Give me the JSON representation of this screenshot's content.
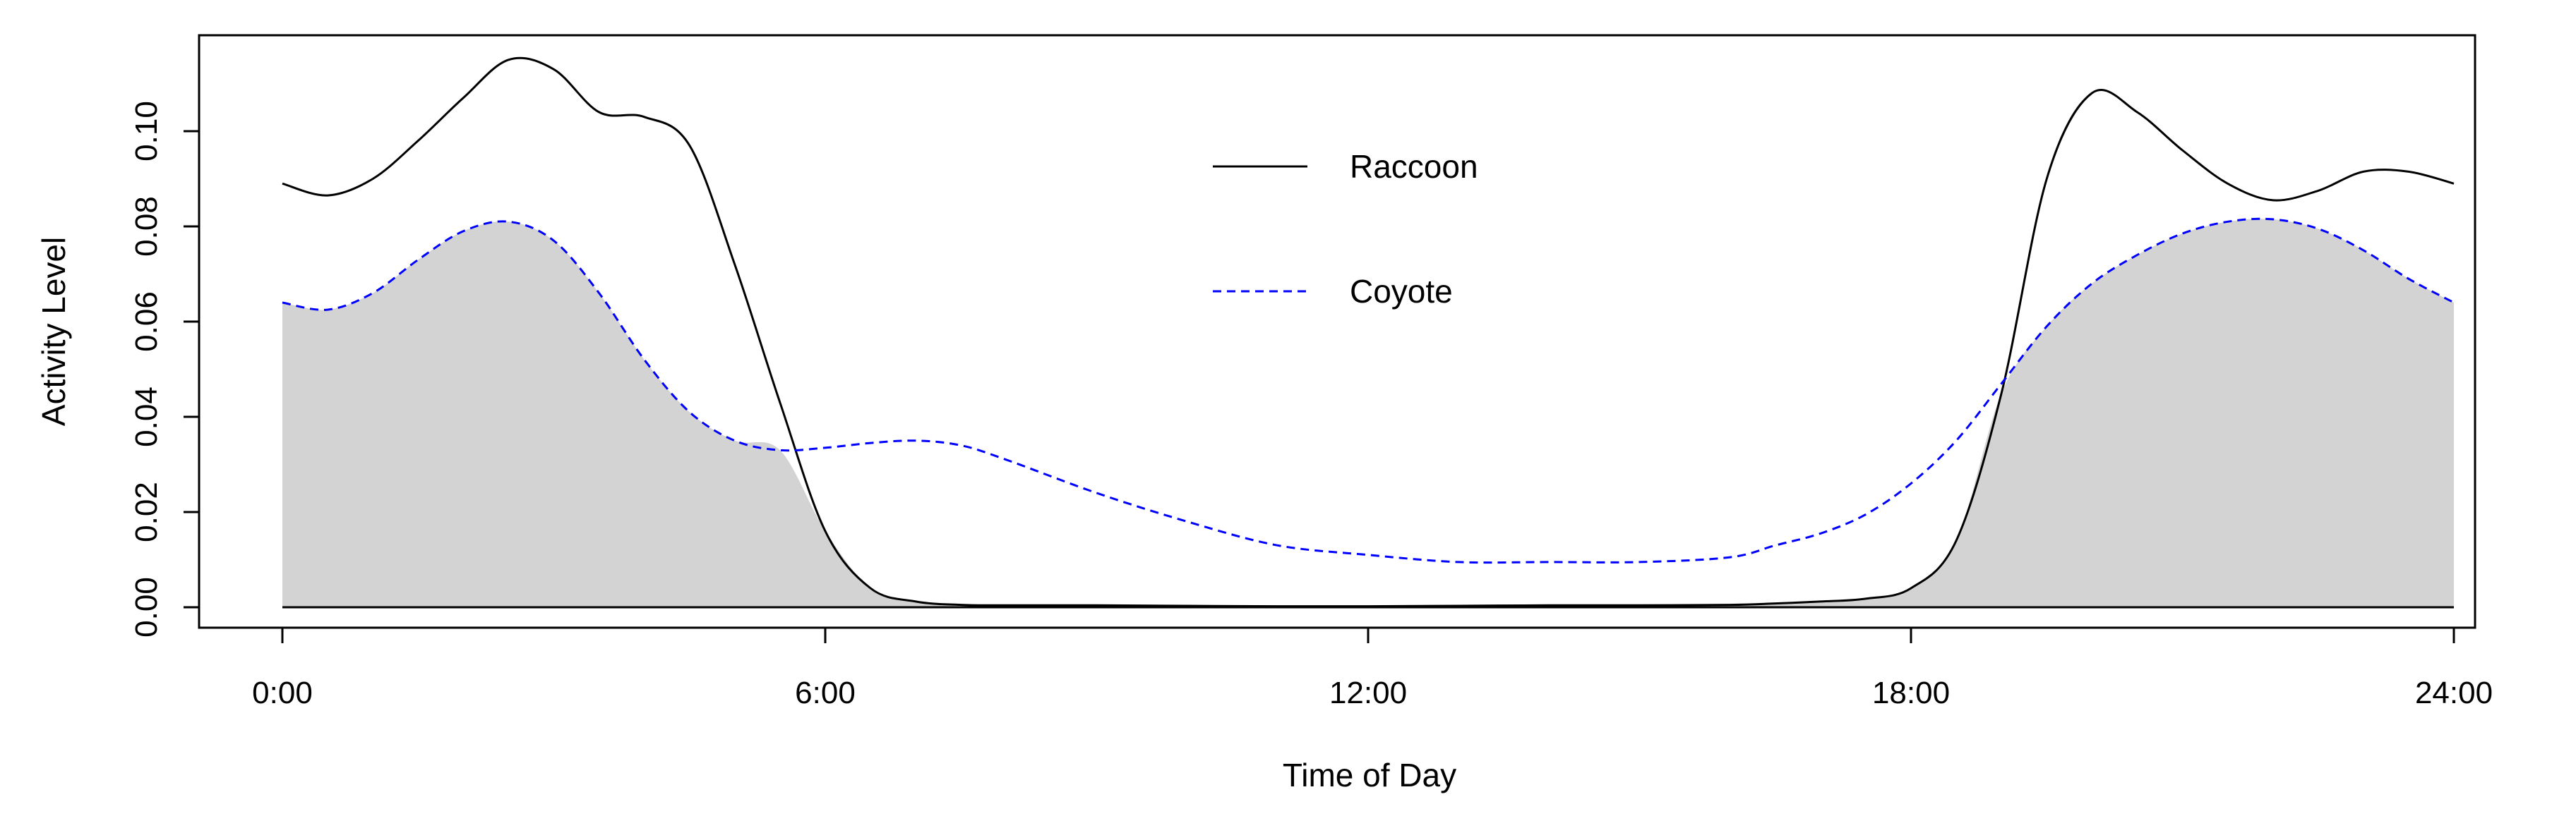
{
  "chart_data": {
    "type": "line",
    "xlabel": "Time of Day",
    "ylabel": "Activity Level",
    "xlim": [
      0,
      24
    ],
    "ylim": [
      0,
      0.1
    ],
    "y_range_padding_top": 0.118,
    "x_ticks": [
      {
        "value": 0,
        "label": "0:00"
      },
      {
        "value": 6,
        "label": "6:00"
      },
      {
        "value": 12,
        "label": "12:00"
      },
      {
        "value": 18,
        "label": "18:00"
      },
      {
        "value": 24,
        "label": "24:00"
      }
    ],
    "y_ticks": [
      {
        "value": 0.0,
        "label": "0.00"
      },
      {
        "value": 0.02,
        "label": "0.02"
      },
      {
        "value": 0.04,
        "label": "0.04"
      },
      {
        "value": 0.06,
        "label": "0.06"
      },
      {
        "value": 0.08,
        "label": "0.08"
      },
      {
        "value": 0.1,
        "label": "0.10"
      }
    ],
    "grid": false,
    "legend": {
      "position": "top-center",
      "entries": [
        "Raccoon",
        "Coyote"
      ]
    },
    "overlap_fill_color": "#d3d3d3",
    "x": [
      0,
      0.5,
      1,
      1.5,
      2,
      2.5,
      3,
      3.5,
      4,
      4.5,
      5,
      5.5,
      6,
      6.5,
      7,
      7.5,
      8,
      9,
      10,
      11,
      12,
      13,
      14,
      15,
      16,
      16.5,
      17,
      17.5,
      18,
      18.5,
      19,
      19.5,
      20,
      20.5,
      21,
      21.5,
      22,
      22.5,
      23,
      23.5,
      24
    ],
    "series": [
      {
        "name": "Raccoon",
        "color": "#000000",
        "dash": "solid",
        "values": [
          0.089,
          0.0865,
          0.09,
          0.098,
          0.107,
          0.115,
          0.113,
          0.104,
          0.103,
          0.097,
          0.072,
          0.043,
          0.016,
          0.004,
          0.0012,
          0.0005,
          0.0004,
          0.0004,
          0.0003,
          0.0002,
          0.0002,
          0.0003,
          0.0004,
          0.0004,
          0.0005,
          0.0008,
          0.0012,
          0.0018,
          0.004,
          0.014,
          0.045,
          0.09,
          0.108,
          0.104,
          0.096,
          0.089,
          0.0855,
          0.0875,
          0.0915,
          0.0915,
          0.089
        ]
      },
      {
        "name": "Coyote",
        "color": "#0000ff",
        "dash": "dashed",
        "values": [
          0.064,
          0.0625,
          0.066,
          0.073,
          0.079,
          0.081,
          0.077,
          0.066,
          0.052,
          0.041,
          0.035,
          0.033,
          0.0335,
          0.0345,
          0.035,
          0.034,
          0.031,
          0.024,
          0.018,
          0.013,
          0.011,
          0.0095,
          0.0095,
          0.0095,
          0.0105,
          0.013,
          0.0155,
          0.0195,
          0.026,
          0.035,
          0.047,
          0.059,
          0.068,
          0.074,
          0.0785,
          0.081,
          0.0815,
          0.0795,
          0.075,
          0.069,
          0.064
        ]
      }
    ]
  }
}
